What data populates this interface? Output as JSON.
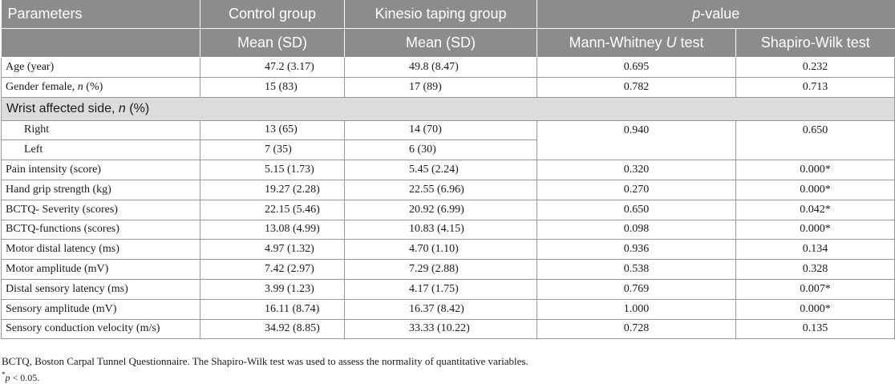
{
  "header": {
    "parameters": "Parameters",
    "control_group": "Control group",
    "kinesio_group": "Kinesio taping group",
    "p_value_italic": "p",
    "p_value_rest": "-value",
    "control_sub": "Mean (SD)",
    "kinesio_sub": "Mean (SD)",
    "mw_pre": "Mann-Whitney ",
    "mw_italic": "U",
    "mw_post": " test",
    "sw": "Shapiro-Wilk test"
  },
  "rows_top": [
    {
      "param": "Age (year)",
      "control": "47.2 (3.17)",
      "kinesio": "49.8 (8.47)",
      "mw": "0.695",
      "sw": "0.232"
    },
    {
      "param_pre": "Gender female, ",
      "param_italic": "n",
      "param_post": " (%)",
      "control": "15 (83)",
      "kinesio": "17 (89)",
      "mw": "0.782",
      "sw": "0.713"
    }
  ],
  "section": {
    "pre": "Wrist affected side, ",
    "italic": "n",
    "post": " (%)"
  },
  "wrist": {
    "right": {
      "label": "Right",
      "control": "13 (65)",
      "kinesio": "14 (70)"
    },
    "left": {
      "label": "Left",
      "control": "7 (35)",
      "kinesio": "6 (30)"
    },
    "mw": "0.940",
    "sw": "0.650"
  },
  "rows_bottom": [
    {
      "param": "Pain intensity (score)",
      "control": "5.15 (1.73)",
      "kinesio": "5.45 (2.24)",
      "mw": "0.320",
      "sw": "0.000*"
    },
    {
      "param": "Hand grip strength (kg)",
      "control": "19.27 (2.28)",
      "kinesio": "22.55 (6.96)",
      "mw": "0.270",
      "sw": "0.000*"
    },
    {
      "param": "BCTQ- Severity (scores)",
      "control": "22.15 (5.46)",
      "kinesio": "20.92 (6.99)",
      "mw": "0.650",
      "sw": "0.042*"
    },
    {
      "param": "BCTQ-functions (scores)",
      "control": "13.08 (4.99)",
      "kinesio": "10.83 (4.15)",
      "mw": "0.098",
      "sw": "0.000*"
    },
    {
      "param": "Motor distal latency (ms)",
      "control": "4.97 (1.32)",
      "kinesio": "4.70 (1.10)",
      "mw": "0.936",
      "sw": "0.134"
    },
    {
      "param": "Motor amplitude (mV)",
      "control": "7.42 (2.97)",
      "kinesio": "7.29 (2.88)",
      "mw": "0.538",
      "sw": "0.328"
    },
    {
      "param": "Distal sensory latency (ms)",
      "control": "3.99 (1.23)",
      "kinesio": "4.17 (1.75)",
      "mw": "0.769",
      "sw": "0.007*"
    },
    {
      "param": "Sensory amplitude (mV)",
      "control": "16.11 (8.74)",
      "kinesio": "16.37 (8.42)",
      "mw": "1.000",
      "sw": "0.000*"
    },
    {
      "param": "Sensory conduction velocity (m/s)",
      "control": "34.92 (8.85)",
      "kinesio": "33.33 (10.22)",
      "mw": "0.728",
      "sw": "0.135"
    }
  ],
  "footnote": {
    "line1": "BCTQ, Boston Carpal Tunnel Questionnaire. The Shapiro-Wilk test was used to assess the normality of quantitative variables.",
    "line2_sup": "*",
    "line2_italic": "p",
    "line2_rest": " < 0.05."
  }
}
